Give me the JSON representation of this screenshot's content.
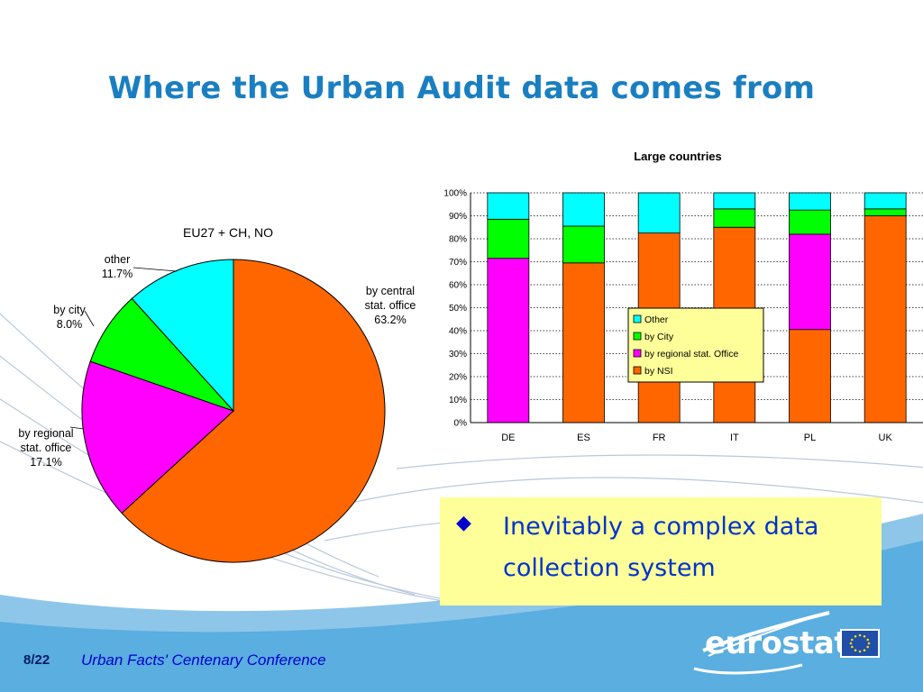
{
  "slide": {
    "title": "Where the Urban Audit data comes from",
    "bullet_text": "Inevitably a complex data collection system",
    "bullet_glyph": "◆",
    "page_number": "8/22",
    "footer": "Urban Facts' Centenary Conference",
    "logo_text": "eurostat"
  },
  "colors": {
    "title": "#1a7fc1",
    "nsi": "#ff6600",
    "regional": "#ff00ff",
    "city": "#00ff00",
    "other": "#00ffff",
    "footer_band": "#5aaee0",
    "bullet_box": "#ffff99"
  },
  "chart_data": [
    {
      "type": "pie",
      "title": "EU27 + CH, NO",
      "slices": [
        {
          "label": "by central stat. office",
          "value": 63.2,
          "value_label": "63.2%",
          "color": "#ff6600"
        },
        {
          "label": "by regional stat. office",
          "value": 17.1,
          "value_label": "17.1%",
          "color": "#ff00ff"
        },
        {
          "label": "by city",
          "value": 8.0,
          "value_label": "8.0%",
          "color": "#00ff00"
        },
        {
          "label": "other",
          "value": 11.7,
          "value_label": "11.7%",
          "color": "#00ffff"
        }
      ]
    },
    {
      "type": "bar",
      "stacked": true,
      "title": "Large countries",
      "categories": [
        "DE",
        "ES",
        "FR",
        "IT",
        "PL",
        "UK"
      ],
      "series": [
        {
          "name": "by NSI",
          "color": "#ff6600",
          "values": [
            0,
            69.5,
            82.5,
            85,
            40.5,
            90
          ]
        },
        {
          "name": "by regional stat. Office",
          "color": "#ff00ff",
          "values": [
            71.5,
            0,
            0,
            0,
            41.5,
            0
          ]
        },
        {
          "name": "by City",
          "color": "#00ff00",
          "values": [
            17,
            16,
            0,
            8,
            10.5,
            3
          ]
        },
        {
          "name": "Other",
          "color": "#00ffff",
          "values": [
            11.5,
            14.5,
            17.5,
            7,
            7.5,
            7
          ]
        }
      ],
      "yticks": [
        "0%",
        "10%",
        "20%",
        "30%",
        "40%",
        "50%",
        "60%",
        "70%",
        "80%",
        "90%",
        "100%"
      ],
      "ylim": [
        0,
        100
      ],
      "legend_order": [
        "Other",
        "by City",
        "by regional stat. Office",
        "by NSI"
      ],
      "legend_position": "inside-right",
      "grid": true
    }
  ]
}
